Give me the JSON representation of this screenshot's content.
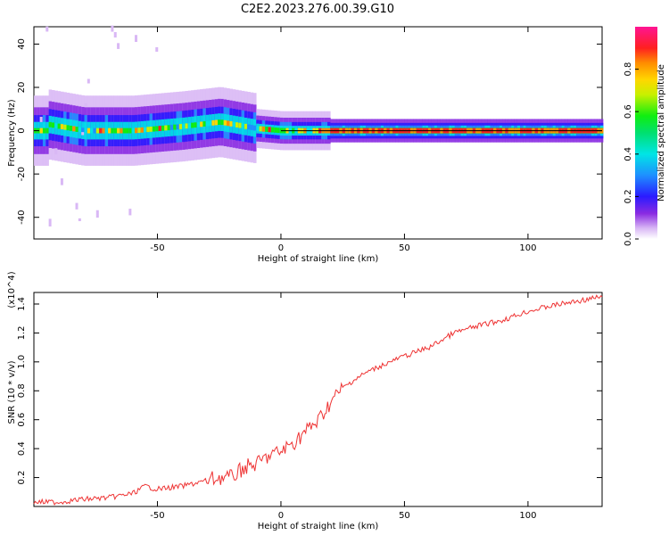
{
  "figure": {
    "title": "C2E2.2023.276.00.39.G10"
  },
  "chart_data": [
    {
      "type": "heatmap",
      "title": "C2E2.2023.276.00.39.G10",
      "xlabel": "Height of straight line (km)",
      "ylabel": "Frequency (Hz)",
      "xlim": [
        -100,
        130
      ],
      "ylim": [
        -50,
        48
      ],
      "x_ticks": [
        -50,
        0,
        50,
        100
      ],
      "y_ticks": [
        -40,
        -20,
        0,
        20,
        40
      ],
      "colorbar": {
        "label": "Normalized spectral amplitude",
        "range": [
          0,
          1
        ],
        "ticks": [
          0.0,
          0.2,
          0.4,
          0.6,
          0.8
        ],
        "colormap": "rainbow (white-purple-blue-cyan-green-yellow-orange-red-pink)"
      },
      "ridge_description_points": [
        {
          "x": -95,
          "y": 3
        },
        {
          "x": -80,
          "y": 0
        },
        {
          "x": -60,
          "y": 0
        },
        {
          "x": -40,
          "y": 2
        },
        {
          "x": -25,
          "y": 4
        },
        {
          "x": -10,
          "y": 1
        },
        {
          "x": 0,
          "y": 0
        },
        {
          "x": 20,
          "y": 0
        },
        {
          "x": 60,
          "y": 0
        },
        {
          "x": 100,
          "y": 0
        },
        {
          "x": 130,
          "y": 0
        }
      ],
      "grid": false
    },
    {
      "type": "line",
      "xlabel": "Height of straight line (km)",
      "ylabel": "SNR (10 * v/v)",
      "y_multiplier": "(x10^4)",
      "xlim": [
        -100,
        130
      ],
      "ylim": [
        0,
        1.48
      ],
      "x_ticks": [
        -50,
        0,
        50,
        100
      ],
      "y_ticks": [
        0.2,
        0.4,
        0.6,
        0.8,
        1.0,
        1.2,
        1.4
      ],
      "line_color": "#ee3333",
      "x": [
        -100,
        -90,
        -80,
        -70,
        -60,
        -55,
        -50,
        -40,
        -30,
        -25,
        -20,
        -15,
        -10,
        -5,
        0,
        5,
        10,
        15,
        20,
        25,
        30,
        35,
        40,
        50,
        60,
        65,
        70,
        80,
        90,
        100,
        110,
        120,
        130
      ],
      "y": [
        0.03,
        0.03,
        0.05,
        0.06,
        0.09,
        0.14,
        0.12,
        0.14,
        0.18,
        0.2,
        0.2,
        0.27,
        0.29,
        0.35,
        0.38,
        0.44,
        0.52,
        0.59,
        0.72,
        0.82,
        0.88,
        0.93,
        0.97,
        1.04,
        1.1,
        1.15,
        1.2,
        1.25,
        1.29,
        1.35,
        1.39,
        1.42,
        1.45
      ],
      "grid": false
    }
  ]
}
